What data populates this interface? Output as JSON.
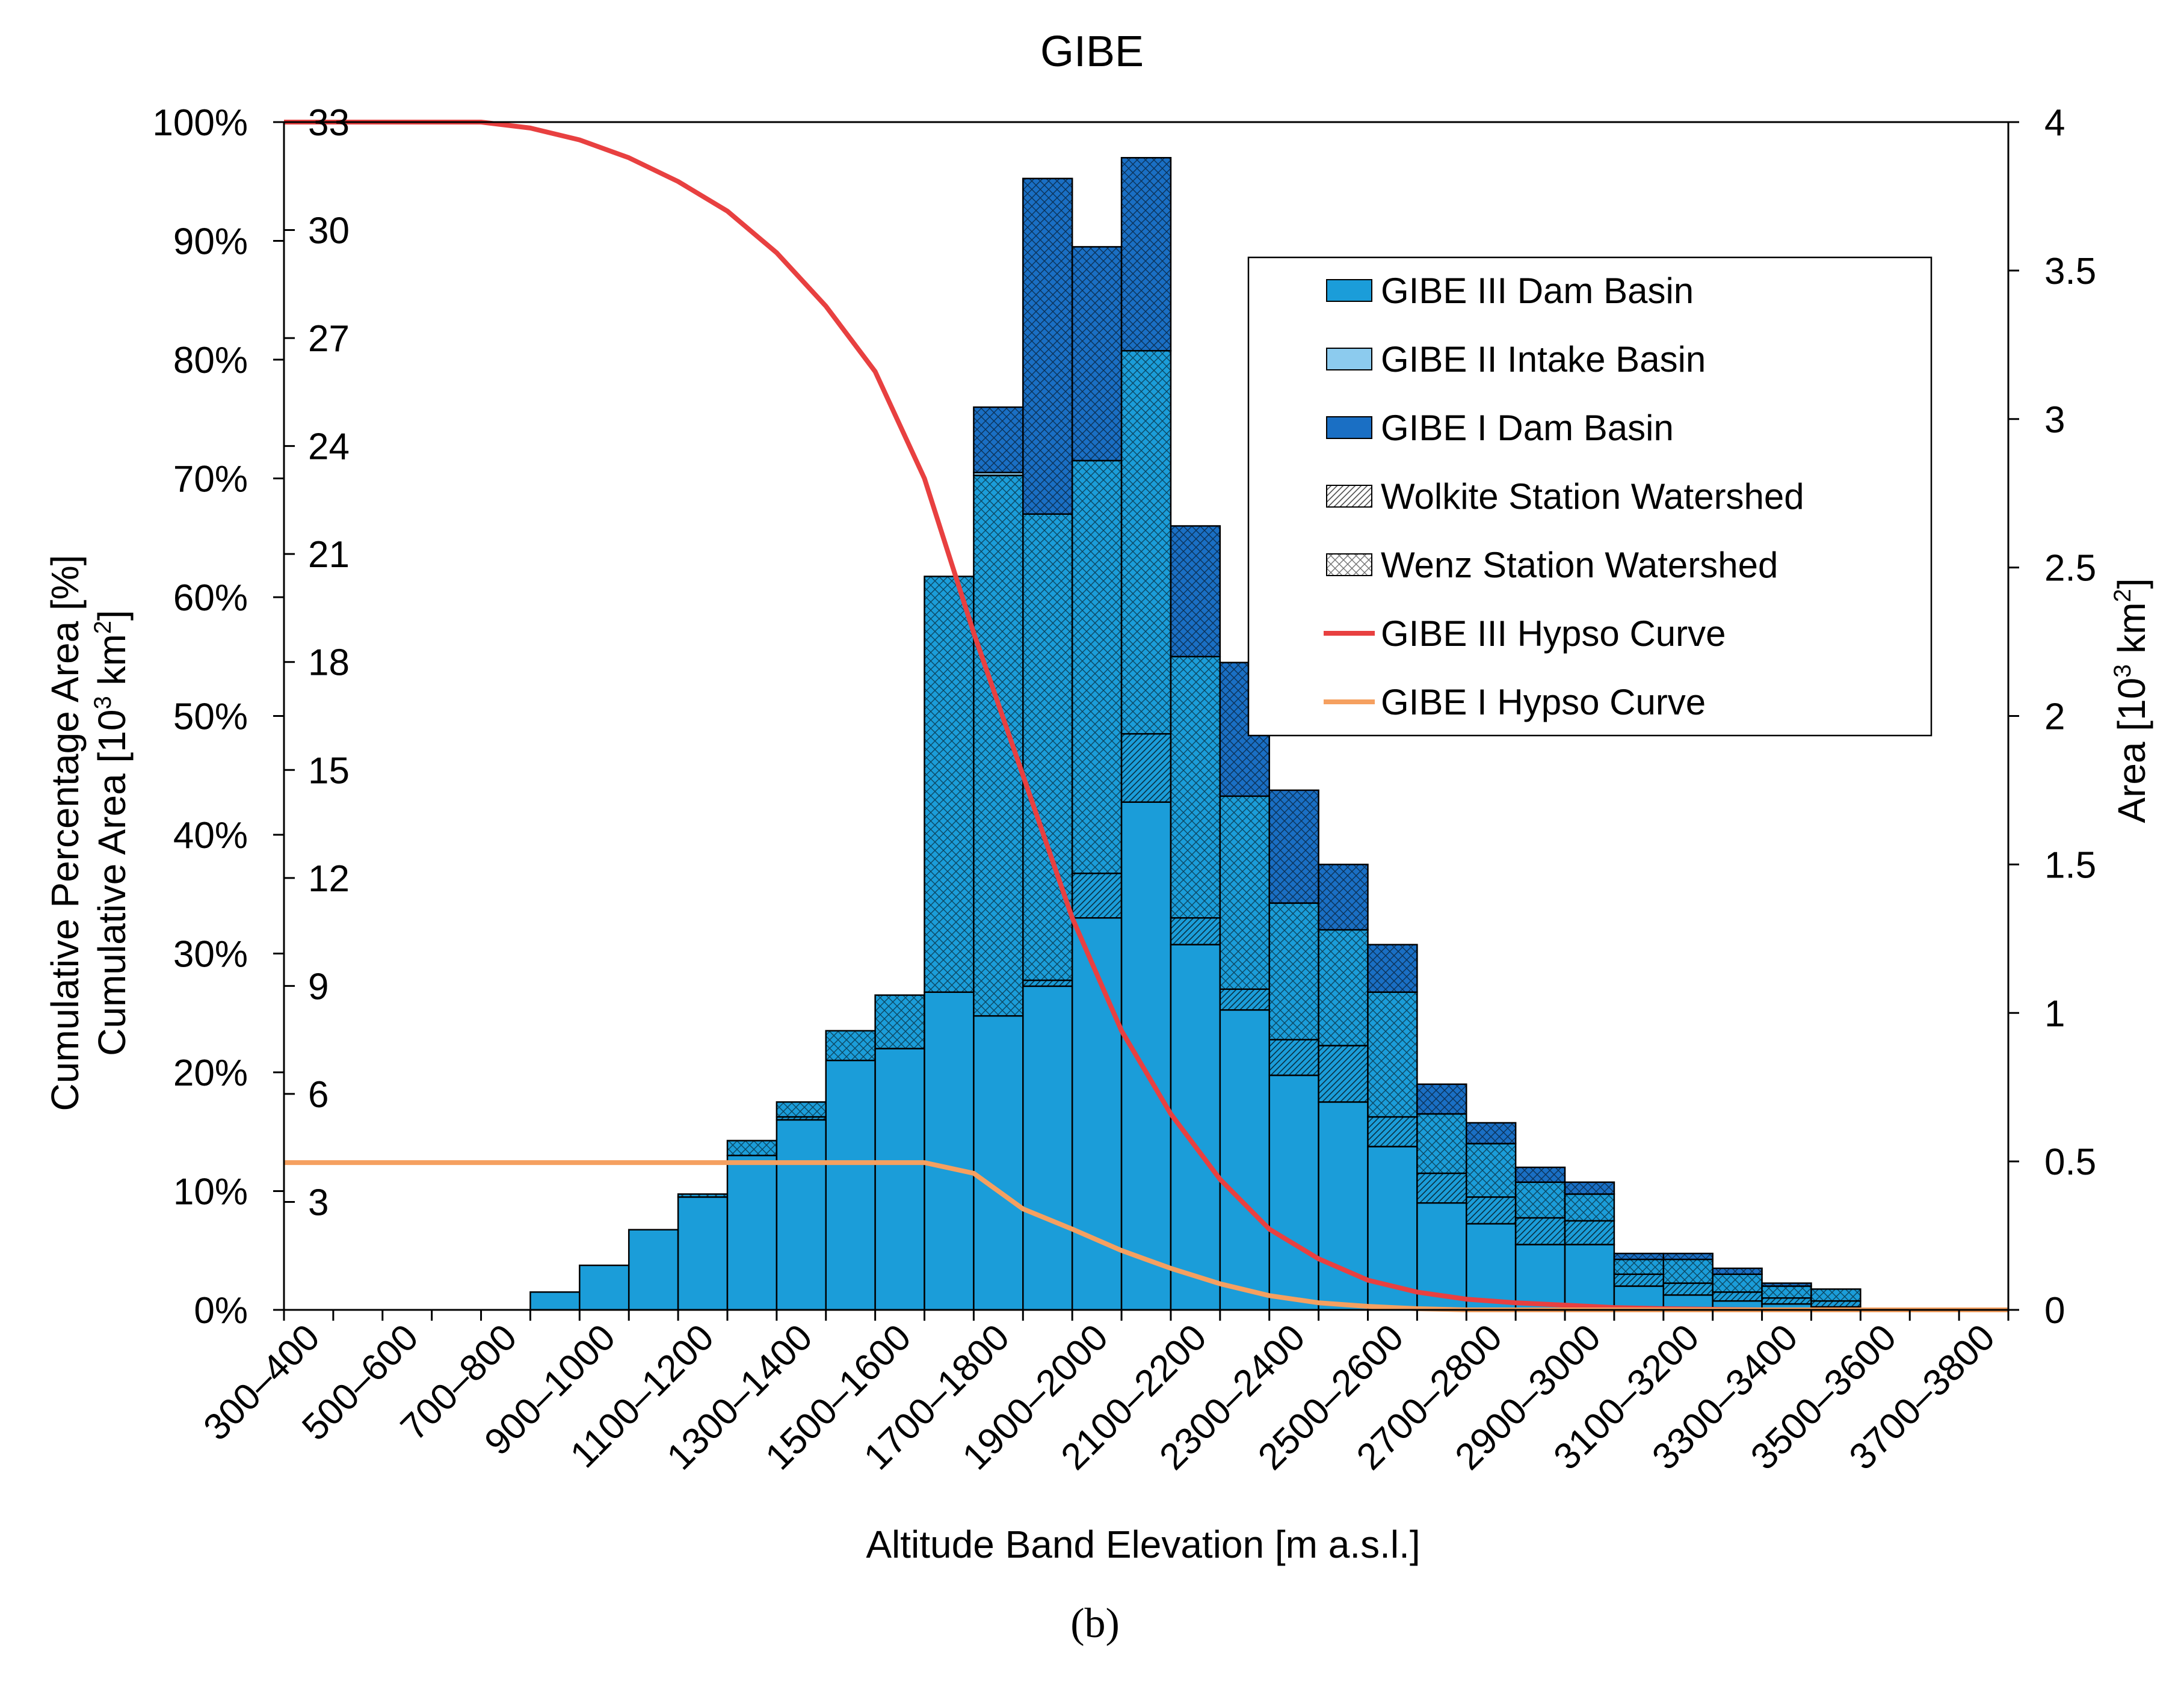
{
  "panel_label": "(b)",
  "chart_data": {
    "type": "bar",
    "stacked": true,
    "title": "GIBE",
    "xlabel": "Altitude Band Elevation [m a.s.l.]",
    "ylabel_left_1": "Cumulative Percentage Area [%]",
    "ylabel_left_2": "Cumulative Area [10",
    "ylabel_left_2_sup": "3",
    "ylabel_left_2_unit": " km",
    "ylabel_left_2_sup2": "2",
    "ylabel_left_2_end": "]",
    "ylabel_right": "Area [10",
    "ylabel_right_sup": "3",
    "ylabel_right_unit": " km",
    "ylabel_right_sup2": "2",
    "ylabel_right_end": "]",
    "categories": [
      "300–400",
      "400–500",
      "500–600",
      "600–700",
      "700–800",
      "800–900",
      "900–1000",
      "1000–1100",
      "1100–1200",
      "1200–1300",
      "1300–1400",
      "1400–1500",
      "1500–1600",
      "1600–1700",
      "1700–1800",
      "1800–1900",
      "1900–2000",
      "2000–2100",
      "2100–2200",
      "2200–2300",
      "2300–2400",
      "2400–2500",
      "2500–2600",
      "2600–2700",
      "2700–2800",
      "2800–2900",
      "2900–3000",
      "3000–3100",
      "3100–3200",
      "3200–3300",
      "3300–3400",
      "3400–3500",
      "3500–3600",
      "3600–3700",
      "3700–3800"
    ],
    "x_tick_labels": [
      "300–400",
      "",
      "500–600",
      "",
      "700–800",
      "",
      "900–1000",
      "",
      "1100–1200",
      "",
      "1300–1400",
      "",
      "1500–1600",
      "",
      "1700–1800",
      "",
      "1900–2000",
      "",
      "2100–2200",
      "",
      "2300–2400",
      "",
      "2500–2600",
      "",
      "2700–2800",
      "",
      "2900–3000",
      "",
      "3100–3200",
      "",
      "3300–3400",
      "",
      "3500–3600",
      "",
      "3700–3800"
    ],
    "y_right": {
      "label": "Area [10^3 km^2]",
      "range": [
        0,
        4
      ],
      "ticks": [
        "0",
        "0.5",
        "1",
        "1.5",
        "2",
        "2.5",
        "3",
        "3.5",
        "4"
      ]
    },
    "y_left_percent": {
      "range": [
        0,
        100
      ],
      "ticks": [
        "0%",
        "10%",
        "20%",
        "30%",
        "40%",
        "50%",
        "60%",
        "70%",
        "80%",
        "90%",
        "100%"
      ]
    },
    "y_left_cumulative_area": {
      "range": [
        0,
        33
      ],
      "ticks": [
        "3",
        "6",
        "9",
        "12",
        "15",
        "18",
        "21",
        "24",
        "27",
        "30",
        "33"
      ]
    },
    "series": [
      {
        "name": "GIBE III Dam Basin",
        "role": "base",
        "pattern": "solid",
        "values": [
          0,
          0,
          0,
          0,
          0,
          0.06,
          0.15,
          0.27,
          0.38,
          0.52,
          0.64,
          0.84,
          0.88,
          1.07,
          0.99,
          1.09,
          1.32,
          1.71,
          1.23,
          1.01,
          0.79,
          0.7,
          0.55,
          0.36,
          0.29,
          0.22,
          0.22,
          0.08,
          0.05,
          0.03,
          0.02,
          0.01,
          0,
          0,
          0
        ]
      },
      {
        "name": "Wolkite Station Watershed",
        "role": "hatch",
        "pattern": "diagonal",
        "values": [
          0,
          0,
          0,
          0,
          0,
          0,
          0,
          0,
          0,
          0,
          0.01,
          0,
          0,
          0,
          0,
          0.02,
          0.15,
          0.23,
          0.09,
          0.07,
          0.12,
          0.19,
          0.1,
          0.1,
          0.09,
          0.09,
          0.08,
          0.04,
          0.04,
          0.03,
          0.02,
          0.02,
          0,
          0,
          0
        ]
      },
      {
        "name": "Wenz Station Watershed",
        "role": "hatch",
        "pattern": "cross",
        "values": [
          0,
          0,
          0,
          0,
          0,
          0,
          0,
          0,
          0.01,
          0.05,
          0.05,
          0.1,
          0.18,
          1.4,
          1.82,
          1.57,
          1.39,
          1.29,
          0.88,
          0.65,
          0.46,
          0.39,
          0.42,
          0.2,
          0.18,
          0.12,
          0.09,
          0.05,
          0.08,
          0.06,
          0.04,
          0.04,
          0,
          0,
          0
        ]
      },
      {
        "name": "GIBE II Intake Basin",
        "role": "top",
        "pattern": "solid",
        "values": [
          0,
          0,
          0,
          0,
          0,
          0,
          0,
          0,
          0,
          0,
          0,
          0,
          0,
          0,
          0.01,
          0,
          0,
          0,
          0,
          0,
          0,
          0,
          0,
          0,
          0,
          0,
          0,
          0,
          0,
          0,
          0,
          0,
          0,
          0,
          0
        ]
      },
      {
        "name": "GIBE I Dam Basin",
        "role": "top",
        "pattern": "cross",
        "values": [
          0,
          0,
          0,
          0,
          0,
          0,
          0,
          0,
          0,
          0,
          0,
          0,
          0,
          0,
          0.22,
          1.13,
          0.72,
          0.65,
          0.44,
          0.45,
          0.38,
          0.22,
          0.16,
          0.1,
          0.07,
          0.05,
          0.04,
          0.02,
          0.02,
          0.02,
          0.01,
          0,
          0,
          0,
          0
        ]
      }
    ],
    "lines": [
      {
        "name": "GIBE III Hypso Curve",
        "color": "#e84040",
        "axis": "percent",
        "x_bin_index": [
          0,
          2,
          4,
          5,
          6,
          7,
          8,
          9,
          10,
          11,
          12,
          13,
          14,
          15,
          16,
          17,
          18,
          19,
          20,
          21,
          22,
          23,
          24,
          25,
          26,
          27,
          28,
          29,
          30,
          31,
          32,
          33,
          35
        ],
        "values": [
          100,
          100,
          100,
          99.5,
          98.5,
          97,
          95,
          92.5,
          89,
          84.5,
          79,
          70,
          57,
          45,
          33,
          23.5,
          16.5,
          11,
          6.8,
          4.3,
          2.5,
          1.5,
          0.9,
          0.6,
          0.4,
          0.2,
          0.1,
          0.05,
          0,
          0,
          0,
          0,
          0
        ]
      },
      {
        "name": "GIBE I Hypso Curve",
        "color": "#f5a060",
        "axis": "percent",
        "x_bin_index": [
          0,
          12,
          13,
          14,
          15,
          16,
          17,
          18,
          19,
          20,
          21,
          22,
          23,
          24,
          25,
          26,
          27,
          35
        ],
        "values": [
          12.4,
          12.4,
          12.4,
          11.5,
          8.5,
          6.8,
          5,
          3.5,
          2.2,
          1.2,
          0.6,
          0.3,
          0.1,
          0,
          0,
          0,
          0,
          0
        ]
      }
    ],
    "legend": {
      "position": "upper-right",
      "items": [
        {
          "label": "GIBE III Dam Basin",
          "swatch": "solid",
          "color": "#1b9dd9"
        },
        {
          "label": "GIBE II Intake Basin",
          "swatch": "solid",
          "color": "#8ccbee"
        },
        {
          "label": "GIBE I Dam Basin",
          "swatch": "solid",
          "color": "#1a6fc4"
        },
        {
          "label": "Wolkite Station Watershed",
          "swatch": "diagonal",
          "color": "#ffffff"
        },
        {
          "label": "Wenz Station Watershed",
          "swatch": "cross",
          "color": "#ffffff"
        },
        {
          "label": "GIBE III Hypso Curve",
          "swatch": "line",
          "color": "#e84040"
        },
        {
          "label": "GIBE I Hypso Curve",
          "swatch": "line",
          "color": "#f5a060"
        }
      ]
    },
    "colors": {
      "base": "#1b9dd9",
      "gibe1": "#1a6fc4",
      "gibe2": "#8ccbee",
      "grid": "none"
    }
  }
}
